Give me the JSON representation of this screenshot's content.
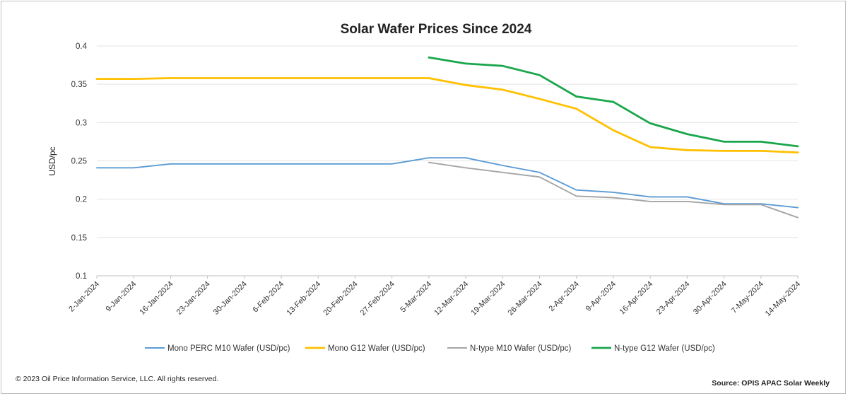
{
  "chart_data": {
    "type": "line",
    "title": "Solar Wafer Prices Since 2024",
    "ylabel": "USD/pc",
    "xlabel": "",
    "ylim": [
      0.1,
      0.4
    ],
    "yticks": [
      0.1,
      0.15,
      0.2,
      0.25,
      0.3,
      0.35,
      0.4
    ],
    "ytick_labels": [
      "0.1",
      "0.15",
      "0.2",
      "0.25",
      "0.3",
      "0.35",
      "0.4"
    ],
    "grid": true,
    "legend_position": "bottom",
    "categories": [
      "2-Jan-2024",
      "9-Jan-2024",
      "16-Jan-2024",
      "23-Jan-2024",
      "30-Jan-2024",
      "6-Feb-2024",
      "13-Feb-2024",
      "20-Feb-2024",
      "27-Feb-2024",
      "5-Mar-2024",
      "12-Mar-2024",
      "19-Mar-2024",
      "26-Mar-2024",
      "2-Apr-2024",
      "9-Apr-2024",
      "16-Apr-2024",
      "23-Apr-2024",
      "30-Apr-2024",
      "7-May-2024",
      "14-May-2024"
    ],
    "series": [
      {
        "name": "Mono PERC M10 Wafer (USD/pc)",
        "color": "#5b9bd5",
        "values": [
          0.241,
          0.241,
          0.246,
          0.246,
          0.246,
          0.246,
          0.246,
          0.246,
          0.246,
          0.254,
          0.254,
          0.244,
          0.235,
          0.212,
          0.209,
          0.203,
          0.203,
          0.194,
          0.194,
          0.189
        ]
      },
      {
        "name": "Mono G12 Wafer (USD/pc)",
        "color": "#ffc000",
        "values": [
          0.357,
          0.357,
          0.358,
          0.358,
          0.358,
          0.358,
          0.358,
          0.358,
          0.358,
          0.358,
          0.349,
          0.343,
          0.331,
          0.318,
          0.29,
          0.268,
          0.264,
          0.263,
          0.263,
          0.261
        ]
      },
      {
        "name": "N-type M10 Wafer (USD/pc)",
        "color": "#a5a5a5",
        "values": [
          null,
          null,
          null,
          null,
          null,
          null,
          null,
          null,
          null,
          0.248,
          0.241,
          0.235,
          0.229,
          0.204,
          0.202,
          0.197,
          0.197,
          0.193,
          0.193,
          0.176
        ]
      },
      {
        "name": "N-type G12 Wafer (USD/pc)",
        "color": "#1aa64b",
        "values": [
          null,
          null,
          null,
          null,
          null,
          null,
          null,
          null,
          null,
          0.385,
          0.377,
          0.374,
          0.362,
          0.334,
          0.327,
          0.299,
          0.285,
          0.275,
          0.275,
          0.269
        ]
      }
    ]
  },
  "footer": {
    "copyright": "© 2023 Oil Price Information Service, LLC. All rights reserved.",
    "source": "Source: OPIS APAC Solar Weekly"
  }
}
